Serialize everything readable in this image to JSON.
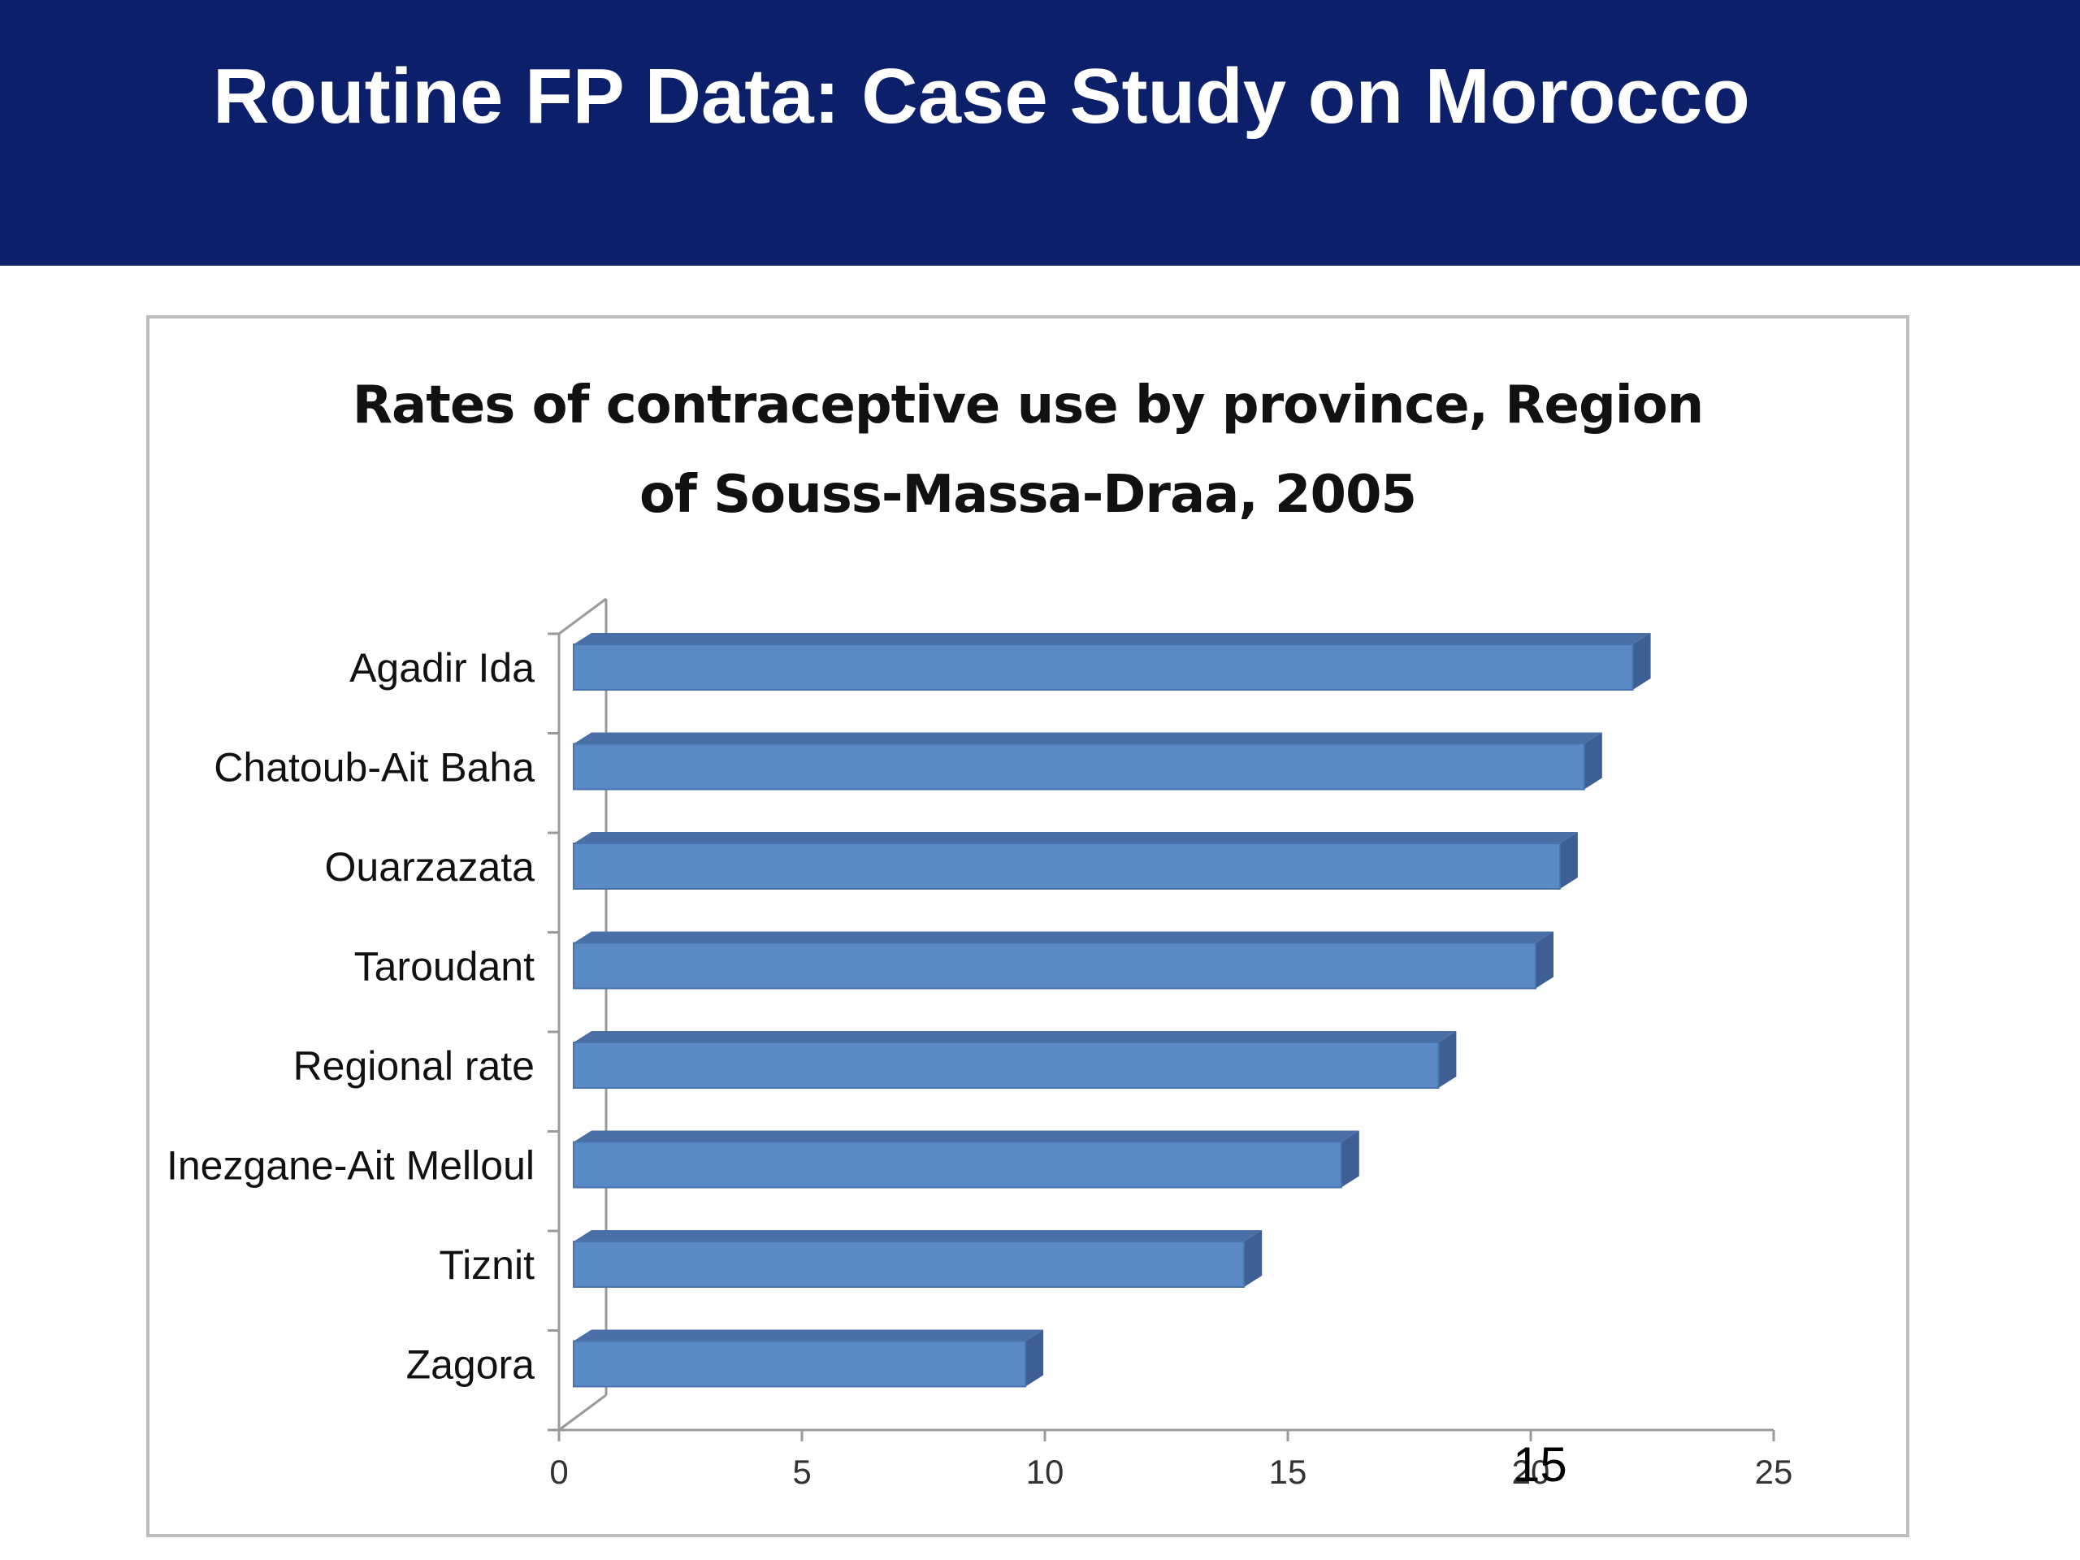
{
  "header": {
    "title": "Routine FP Data: Case Study on Morocco",
    "background": "#0c1f6a"
  },
  "chart_data": {
    "type": "bar",
    "orientation": "horizontal",
    "style": "3d",
    "title_line1": "Rates of contraceptive use by province, Region",
    "title_line2": "of Souss-Massa-Draa, 2005",
    "categories": [
      "Agadir Ida",
      "Chatoub-Ait Baha",
      "Ouarzazata",
      "Taroudant",
      "Regional rate",
      "Inezgane-Ait Melloul",
      "Tiznit",
      "Zagora"
    ],
    "values": [
      22.1,
      21.1,
      20.6,
      20.1,
      18.1,
      16.1,
      14.1,
      9.6
    ],
    "xlim": [
      0,
      25
    ],
    "xticks": [
      0,
      5,
      10,
      15,
      20,
      25
    ],
    "grid": false,
    "legend": "none",
    "bar_color": "#5a8ac6"
  },
  "page_number": "15"
}
